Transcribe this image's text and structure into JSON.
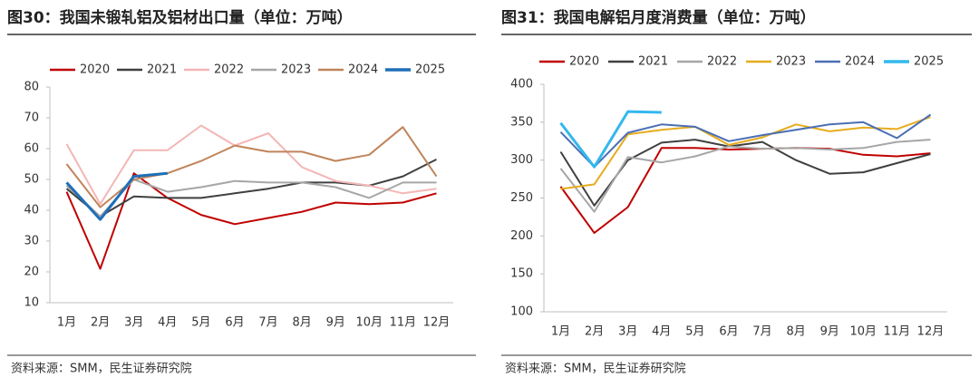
{
  "chart_data": [
    {
      "type": "line",
      "title": "图30：我国未锻轧铝及铝材出口量（单位：万吨）",
      "source": "资料来源：SMM，民生证券研究院",
      "categories": [
        "1月",
        "2月",
        "3月",
        "4月",
        "5月",
        "6月",
        "7月",
        "8月",
        "9月",
        "10月",
        "11月",
        "12月"
      ],
      "ylim": [
        10,
        80
      ],
      "yticks": [
        10,
        20,
        30,
        40,
        50,
        60,
        70,
        80
      ],
      "grid": false,
      "legend": "top",
      "series": [
        {
          "name": "2020",
          "color": "#c00000",
          "values": [
            46,
            21,
            52,
            44,
            38.5,
            35.5,
            37.5,
            39.5,
            42.5,
            42,
            42.5,
            45.5
          ]
        },
        {
          "name": "2021",
          "color": "#404040",
          "values": [
            47,
            38,
            44.5,
            44,
            44,
            45.5,
            47,
            49,
            49,
            48,
            51,
            56.5
          ]
        },
        {
          "name": "2022",
          "color": "#f4b6b6",
          "values": [
            61.5,
            42,
            59.5,
            59.5,
            67.5,
            61,
            65,
            54,
            49.5,
            48,
            45.5,
            47
          ]
        },
        {
          "name": "2023",
          "color": "#a6a6a6",
          "values": [
            48,
            38,
            50,
            46,
            47.5,
            49.5,
            49,
            49,
            47.5,
            44,
            49,
            49
          ]
        },
        {
          "name": "2024",
          "color": "#c0845a",
          "values": [
            55,
            41,
            50,
            52,
            56,
            61,
            59,
            59,
            56,
            58,
            67,
            51
          ]
        },
        {
          "name": "2025",
          "color": "#1f6fb8",
          "values": [
            49,
            37,
            51,
            52,
            null,
            null,
            null,
            null,
            null,
            null,
            null,
            null
          ]
        }
      ]
    },
    {
      "type": "line",
      "title": "图31：我国电解铝月度消费量（单位：万吨）",
      "source": "资料来源：SMM，民生证券研究院",
      "categories": [
        "1月",
        "2月",
        "3月",
        "4月",
        "5月",
        "6月",
        "7月",
        "8月",
        "9月",
        "10月",
        "11月",
        "12月"
      ],
      "ylim": [
        100,
        400
      ],
      "yticks": [
        100,
        150,
        200,
        250,
        300,
        350,
        400
      ],
      "grid": false,
      "legend": "top",
      "series": [
        {
          "name": "2020",
          "color": "#c00000",
          "values": [
            265,
            204,
            238,
            316,
            316,
            314,
            315,
            316,
            315,
            307,
            305,
            309
          ]
        },
        {
          "name": "2021",
          "color": "#404040",
          "values": [
            311,
            240,
            300,
            323,
            327,
            318,
            324,
            300,
            282,
            284,
            296,
            308
          ]
        },
        {
          "name": "2022",
          "color": "#a6a6a6",
          "values": [
            289,
            232,
            304,
            297,
            305,
            318,
            315,
            316,
            314,
            316,
            324,
            327
          ]
        },
        {
          "name": "2023",
          "color": "#e6ac1e",
          "values": [
            262,
            268,
            334,
            340,
            344,
            320,
            330,
            347,
            338,
            343,
            341,
            357
          ]
        },
        {
          "name": "2024",
          "color": "#4a6fb5",
          "values": [
            337,
            291,
            336,
            347,
            344,
            325,
            333,
            340,
            347,
            350,
            329,
            360
          ]
        },
        {
          "name": "2025",
          "color": "#33b8ec",
          "values": [
            349,
            291,
            364,
            363,
            null,
            null,
            null,
            null,
            null,
            null,
            null,
            null
          ]
        }
      ]
    }
  ]
}
